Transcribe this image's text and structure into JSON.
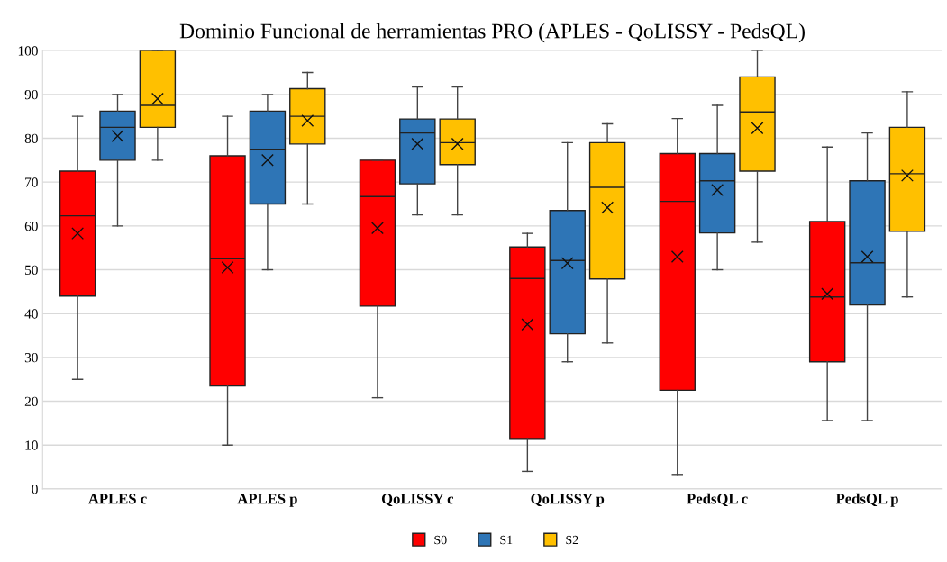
{
  "chart_data": {
    "type": "box",
    "title": "Dominio Funcional de herramientas PRO (APLES - QoLISSY - PedsQL)",
    "categories": [
      "APLES c",
      "APLES p",
      "QoLISSY c",
      "QoLISSY p",
      "PedsQL c",
      "PedsQL p"
    ],
    "ylim": [
      0,
      100
    ],
    "yticks": [
      0,
      10,
      20,
      30,
      40,
      50,
      60,
      70,
      80,
      90,
      100
    ],
    "grid": "y",
    "legend": "bottom",
    "series": [
      {
        "name": "S0",
        "color": "#ff0000",
        "boxes": [
          {
            "low": 25,
            "q1": 44,
            "median": 62.3,
            "q3": 72.5,
            "high": 85,
            "mean": 58.3
          },
          {
            "low": 10,
            "q1": 23.5,
            "median": 52.5,
            "q3": 76,
            "high": 85,
            "mean": 50.5
          },
          {
            "low": 20.8,
            "q1": 41.7,
            "median": 66.7,
            "q3": 75,
            "high": 75,
            "mean": 59.5
          },
          {
            "low": 4,
            "q1": 11.5,
            "median": 48,
            "q3": 55.2,
            "high": 58.3,
            "mean": 37.5
          },
          {
            "low": 3.3,
            "q1": 22.5,
            "median": 65.6,
            "q3": 76.5,
            "high": 84.5,
            "mean": 53
          },
          {
            "low": 15.6,
            "q1": 29,
            "median": 43.8,
            "q3": 61,
            "high": 78,
            "mean": 44.5
          }
        ]
      },
      {
        "name": "S1",
        "color": "#2e75b6",
        "boxes": [
          {
            "low": 60,
            "q1": 75,
            "median": 82.5,
            "q3": 86.2,
            "high": 90,
            "mean": 80.5
          },
          {
            "low": 50,
            "q1": 65,
            "median": 77.5,
            "q3": 86.2,
            "high": 90,
            "mean": 75
          },
          {
            "low": 62.5,
            "q1": 69.6,
            "median": 81.2,
            "q3": 84.4,
            "high": 91.7,
            "mean": 78.7
          },
          {
            "low": 29,
            "q1": 35.4,
            "median": 52.1,
            "q3": 63.5,
            "high": 79,
            "mean": 51.5
          },
          {
            "low": 50,
            "q1": 58.4,
            "median": 70.3,
            "q3": 76.5,
            "high": 87.5,
            "mean": 68.2
          },
          {
            "low": 15.6,
            "q1": 42,
            "median": 51.6,
            "q3": 70.3,
            "high": 81.2,
            "mean": 53
          }
        ]
      },
      {
        "name": "S2",
        "color": "#ffc000",
        "boxes": [
          {
            "low": 75,
            "q1": 82.5,
            "median": 87.5,
            "q3": 100,
            "high": 100,
            "mean": 89
          },
          {
            "low": 65,
            "q1": 78.7,
            "median": 85,
            "q3": 91.3,
            "high": 95,
            "mean": 84
          },
          {
            "low": 62.5,
            "q1": 74,
            "median": 79,
            "q3": 84.4,
            "high": 91.7,
            "mean": 78.7
          },
          {
            "low": 33.3,
            "q1": 47.9,
            "median": 68.8,
            "q3": 79,
            "high": 83.3,
            "mean": 64.2
          },
          {
            "low": 56.3,
            "q1": 72.5,
            "median": 86,
            "q3": 94,
            "high": 100,
            "mean": 82.3
          },
          {
            "low": 43.8,
            "q1": 58.8,
            "median": 71.9,
            "q3": 82.5,
            "high": 90.6,
            "mean": 71.5
          }
        ]
      }
    ]
  }
}
